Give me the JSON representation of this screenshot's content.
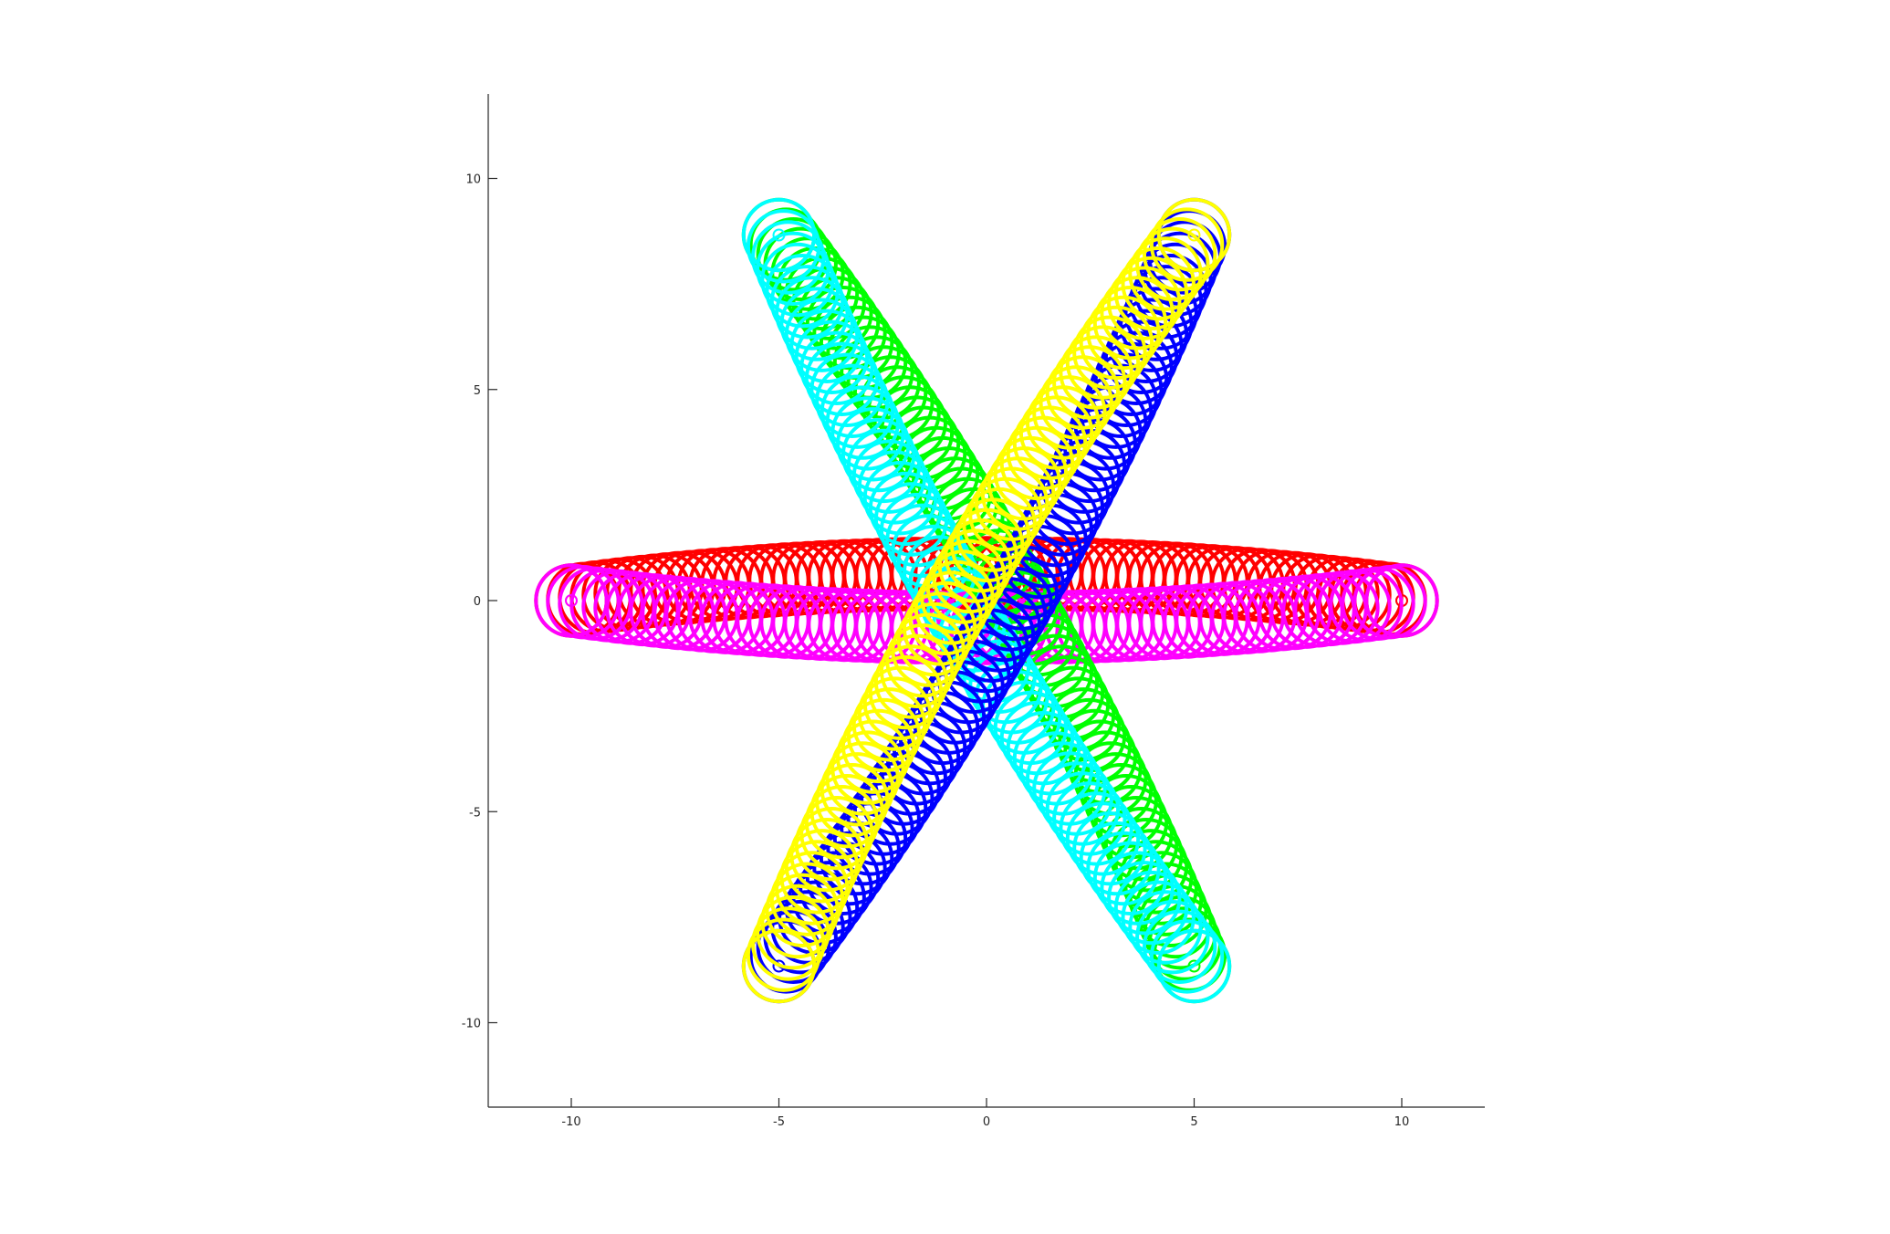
{
  "chart_data": {
    "type": "scatter",
    "title": "",
    "xlabel": "",
    "ylabel": "",
    "xlim": [
      -12,
      12
    ],
    "ylim": [
      -12,
      12
    ],
    "grid": false,
    "xticks": [
      -10,
      -5,
      0,
      5,
      10
    ],
    "yticks": [
      -10,
      -5,
      0,
      5,
      10
    ],
    "xtick_labels": [
      "-10",
      "-5",
      "0",
      "5",
      "10"
    ],
    "ytick_labels": [
      "-10",
      "-5",
      "0",
      "5",
      "10"
    ],
    "marker": "open-circle",
    "series": [
      {
        "color": "#ff0000",
        "ring_radius": 0.85,
        "start": [
          10,
          0
        ],
        "end": [
          -10,
          0
        ],
        "bulge": -1.3
      },
      {
        "color": "#ff00ff",
        "ring_radius": 0.85,
        "start": [
          -10,
          0
        ],
        "end": [
          10,
          0
        ],
        "bulge": -1.3
      },
      {
        "color": "#00ff00",
        "ring_radius": 0.85,
        "start": [
          5,
          -8.66
        ],
        "end": [
          -5,
          8.66
        ],
        "bulge": -1.3
      },
      {
        "color": "#00ffff",
        "ring_radius": 0.85,
        "start": [
          -5,
          8.66
        ],
        "end": [
          5,
          -8.66
        ],
        "bulge": -1.3
      },
      {
        "color": "#0000ff",
        "ring_radius": 0.85,
        "start": [
          -5,
          -8.66
        ],
        "end": [
          5,
          8.66
        ],
        "bulge": -1.3
      },
      {
        "color": "#ffff00",
        "ring_radius": 0.85,
        "start": [
          5,
          8.66
        ],
        "end": [
          -5,
          -8.66
        ],
        "bulge": -1.3
      }
    ]
  }
}
